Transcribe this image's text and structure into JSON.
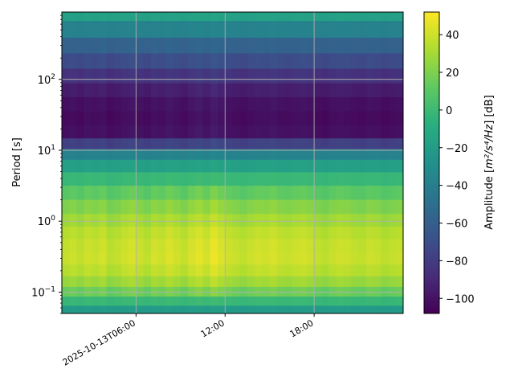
{
  "chart_data": {
    "type": "heatmap",
    "title": "",
    "ylabel": "Period [s]",
    "yscale": "log",
    "ylim": [
      0.05,
      890
    ],
    "y_ticks": [
      {
        "value": 0.1,
        "base": "10",
        "exp": "−1"
      },
      {
        "value": 1,
        "base": "10",
        "exp": "0"
      },
      {
        "value": 10,
        "base": "10",
        "exp": "1"
      },
      {
        "value": 100,
        "base": "10",
        "exp": "2"
      }
    ],
    "xlim": [
      "2025-10-13T01:00:00",
      "2025-10-14T00:00:00"
    ],
    "x_ticks": [
      {
        "value": "2025-10-13T06:00:00",
        "label": "2025-10-13T06:00"
      },
      {
        "value": "2025-10-13T12:00:00",
        "label": "12:00"
      },
      {
        "value": "2025-10-13T18:00:00",
        "label": "18:00"
      }
    ],
    "grid": true,
    "colorbar": {
      "label_prefix": "Amplitude [",
      "label_math": "m²/s⁴/Hz",
      "label_suffix": "] [dB]",
      "vmin": -108,
      "vmax": 52,
      "ticks": [
        "−100",
        "−80",
        "−60",
        "−40",
        "−20",
        "0",
        "20",
        "40"
      ],
      "tick_values": [
        -100,
        -80,
        -60,
        -40,
        -20,
        0,
        20,
        40
      ],
      "colormap": "viridis"
    },
    "periods": [
      890,
      500,
      300,
      180,
      110,
      70,
      45,
      28,
      18,
      12,
      9,
      6,
      4,
      2.5,
      1.6,
      1.0,
      0.7,
      0.45,
      0.3,
      0.2,
      0.14,
      0.1,
      0.075,
      0.055
    ],
    "base_profile_db": [
      -18,
      -38,
      -58,
      -72,
      -86,
      -96,
      -102,
      -104,
      -102,
      -78,
      -38,
      -18,
      -2,
      10,
      20,
      28,
      34,
      37,
      38,
      34,
      26,
      14,
      -2,
      -22
    ],
    "time_offsets_db": [
      0,
      2,
      -1,
      3,
      1,
      4,
      -2,
      0,
      3,
      5,
      2,
      -1,
      4,
      2,
      6,
      3,
      0,
      5,
      8,
      4,
      10,
      6,
      3,
      1,
      -1,
      2,
      4,
      3,
      5,
      2,
      1,
      3,
      4,
      2,
      0,
      -2,
      1,
      3,
      2,
      0,
      -1,
      2,
      1,
      -2,
      0,
      1
    ]
  }
}
